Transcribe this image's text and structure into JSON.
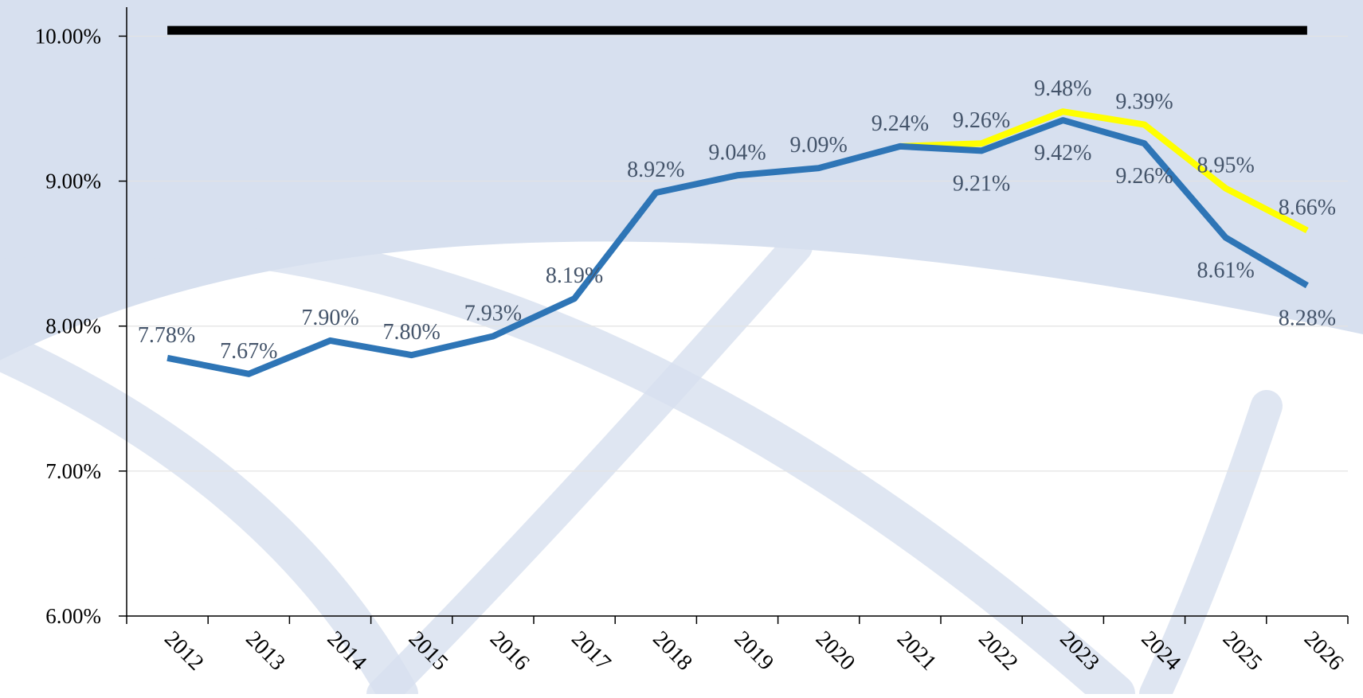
{
  "chart_data": {
    "type": "line",
    "categories": [
      "2012",
      "2013",
      "2014",
      "2015",
      "2016",
      "2017",
      "2018",
      "2019",
      "2020",
      "2021",
      "2022",
      "2023",
      "2024",
      "2025",
      "2026"
    ],
    "series": [
      {
        "color": "#000000",
        "values": [
          10.04,
          10.04,
          10.04,
          10.04,
          10.04,
          10.04,
          10.04,
          10.04,
          10.04,
          10.04,
          10.04,
          10.04,
          10.04,
          10.04,
          10.04
        ]
      },
      {
        "color": "#ffff00",
        "values": [
          null,
          null,
          null,
          null,
          null,
          null,
          null,
          null,
          null,
          9.24,
          9.26,
          9.48,
          9.39,
          8.95,
          8.66
        ],
        "value_labels": [
          null,
          null,
          null,
          null,
          null,
          null,
          null,
          null,
          null,
          null,
          "9.26%",
          "9.48%",
          "9.39%",
          "8.95%",
          "8.66%"
        ]
      },
      {
        "color": "#2e75b6",
        "values": [
          7.78,
          7.67,
          7.9,
          7.8,
          7.93,
          8.19,
          8.92,
          9.04,
          9.09,
          9.24,
          9.21,
          9.42,
          9.26,
          8.61,
          8.28
        ],
        "value_labels": [
          "7.78%",
          "7.67%",
          "7.90%",
          "7.80%",
          "7.93%",
          "8.19%",
          "8.92%",
          "9.04%",
          "9.09%",
          "9.24%",
          "9.21%",
          "9.42%",
          "9.26%",
          "8.61%",
          "8.28%"
        ]
      }
    ],
    "ylim": [
      6,
      10.2
    ],
    "yticks": [
      {
        "value": 6,
        "label": "6.00%"
      },
      {
        "value": 7,
        "label": "7.00%"
      },
      {
        "value": 8,
        "label": "8.00%"
      },
      {
        "value": 9,
        "label": "9.00%"
      },
      {
        "value": 10,
        "label": "10.00%"
      }
    ],
    "grid": true
  }
}
